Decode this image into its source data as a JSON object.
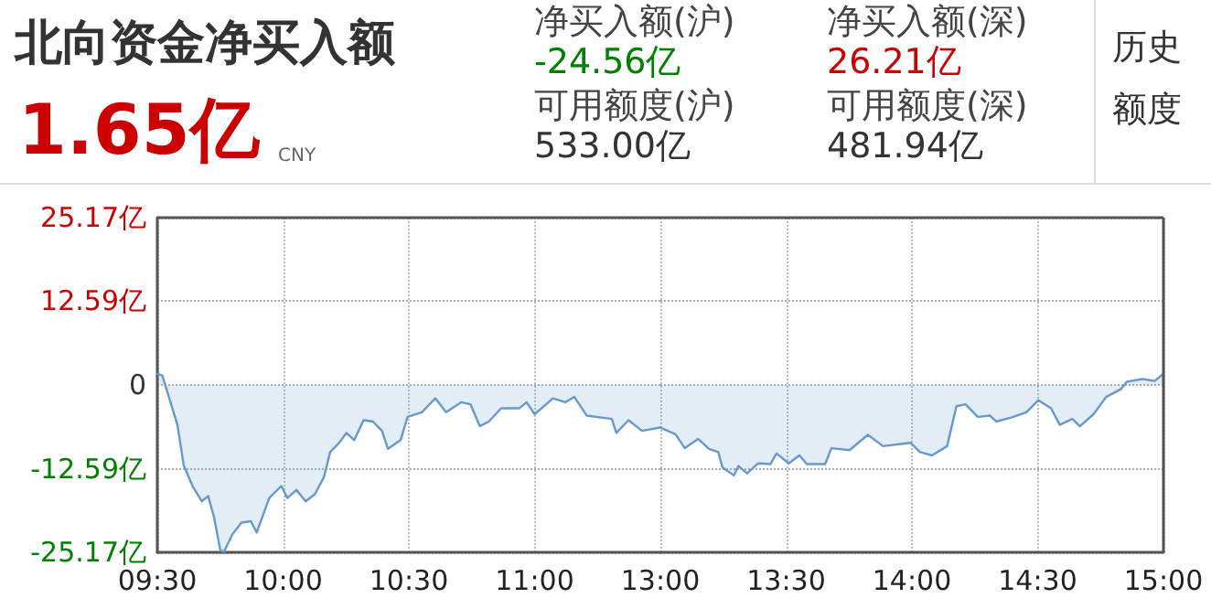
{
  "chart_data": [
    {
      "type": "area",
      "title": "北向资金净买入额",
      "subtitle": "1.65亿",
      "annotations": [
        "CNY",
        "净买入额(沪)",
        "-24.56亿",
        "可用额度(沪)",
        "533.00亿",
        "净买入额(深)",
        "26.21亿",
        "可用额度(深)",
        "481.94亿",
        "历史",
        "额度"
      ],
      "series": [
        {
          "color": "#6699cc",
          "x": [
            9.5,
            9.52,
            9.58,
            9.605,
            9.64,
            9.677,
            9.702,
            9.725,
            9.75,
            9.765,
            9.798,
            9.835,
            9.872,
            9.895,
            9.945,
            9.993,
            10.017,
            10.053,
            10.09,
            10.127,
            10.163,
            10.187,
            10.223,
            10.252,
            10.283,
            10.32,
            10.357,
            10.393,
            10.417,
            10.467,
            10.495,
            10.552,
            10.605,
            10.648,
            10.708,
            10.745,
            10.782,
            10.818,
            10.867,
            10.94,
            10.968,
            11,
            11.073,
            11.122,
            11.158,
            11.207,
            11.307,
            11.325,
            11.373,
            11.427,
            11.5
          ],
          "values": [
            1.7,
            1.4,
            -6.0,
            -12.1,
            -15.2,
            -17.5,
            -16.7,
            -19.8,
            -24.8,
            -25.1,
            -22.5,
            -20.7,
            -20.5,
            -22.2,
            -17.0,
            -15.2,
            -17.0,
            -15.8,
            -17.5,
            -16.4,
            -13.8,
            -10.1,
            -8.7,
            -7.2,
            -8.3,
            -5.3,
            -5.5,
            -6.9,
            -9.6,
            -8.3,
            -4.8,
            -4.1,
            -2.0,
            -4.1,
            -2.6,
            -2.9,
            -6.2,
            -5.5,
            -3.5,
            -3.5,
            -2.6,
            -4.4,
            -2.0,
            -2.6,
            -1.8,
            -4.6,
            -5.1,
            -7.2,
            -5.3,
            -6.9,
            -6.4
          ]
        }
      ],
      "xlim": [
        9.5,
        11.5
      ],
      "xticks": [
        {
          "value": 9.5,
          "label": "09:30"
        },
        {
          "value": 10,
          "label": "10:00"
        },
        {
          "value": 10.5,
          "label": "10:30"
        },
        {
          "value": 11,
          "label": "11:00"
        }
      ],
      "ylim": [
        -25.17,
        25.17
      ],
      "yticks": [
        {
          "value": -25.17,
          "label": "-25.17亿"
        },
        {
          "value": -12.59,
          "label": "-12.59亿"
        },
        0,
        {
          "value": 12.59,
          "label": "12.59亿"
        },
        {
          "value": 25.17,
          "label": "25.17亿"
        }
      ],
      "grid": true,
      "marker": "none",
      "line_style": "solid"
    },
    {
      "type": "area",
      "series": [
        {
          "color": "#6699cc",
          "x": [
            13,
            13.06,
            13.097,
            13.15,
            13.193,
            13.23,
            13.247,
            13.292,
            13.31,
            13.345,
            13.388,
            13.437,
            13.462,
            13.51,
            13.553,
            13.582,
            13.655,
            13.68,
            13.752,
            13.825,
            13.885,
            13.995,
            14.032,
            14.08,
            14.14,
            14.177,
            14.213,
            14.262,
            14.31,
            14.335,
            14.395,
            14.455,
            14.503,
            14.553,
            14.588,
            14.638,
            14.668,
            14.722,
            14.772,
            14.832,
            14.855,
            14.917,
            14.965,
            15
          ],
          "values": [
            -6.4,
            -7.4,
            -9.5,
            -8.1,
            -9.6,
            -10.1,
            -12.4,
            -13.6,
            -12.2,
            -13.3,
            -11.8,
            -11.9,
            -10.3,
            -11.8,
            -10.6,
            -11.9,
            -11.9,
            -9.5,
            -9.8,
            -7.5,
            -9.2,
            -8.7,
            -10.1,
            -10.6,
            -9.2,
            -3.2,
            -2.9,
            -4.8,
            -4.6,
            -5.5,
            -4.9,
            -4.1,
            -2.3,
            -3.5,
            -6.0,
            -5.1,
            -6.2,
            -4.4,
            -1.8,
            -0.6,
            0.5,
            0.9,
            0.6,
            1.7
          ]
        }
      ],
      "xlim": [
        13,
        15
      ],
      "xticks": [
        {
          "value": 13,
          "label": "13:00"
        },
        {
          "value": 13.5,
          "label": "13:30"
        },
        {
          "value": 14,
          "label": "14:00"
        },
        {
          "value": 14.5,
          "label": "14:30"
        },
        {
          "value": 15,
          "label": "15:00"
        }
      ],
      "ylim": [
        -25.17,
        25.17
      ],
      "yticks": [
        -25.17,
        -12.59,
        0,
        12.59,
        25.17
      ],
      "tick_labels": "x",
      "grid": true,
      "marker": "none",
      "line_style": "solid"
    }
  ]
}
